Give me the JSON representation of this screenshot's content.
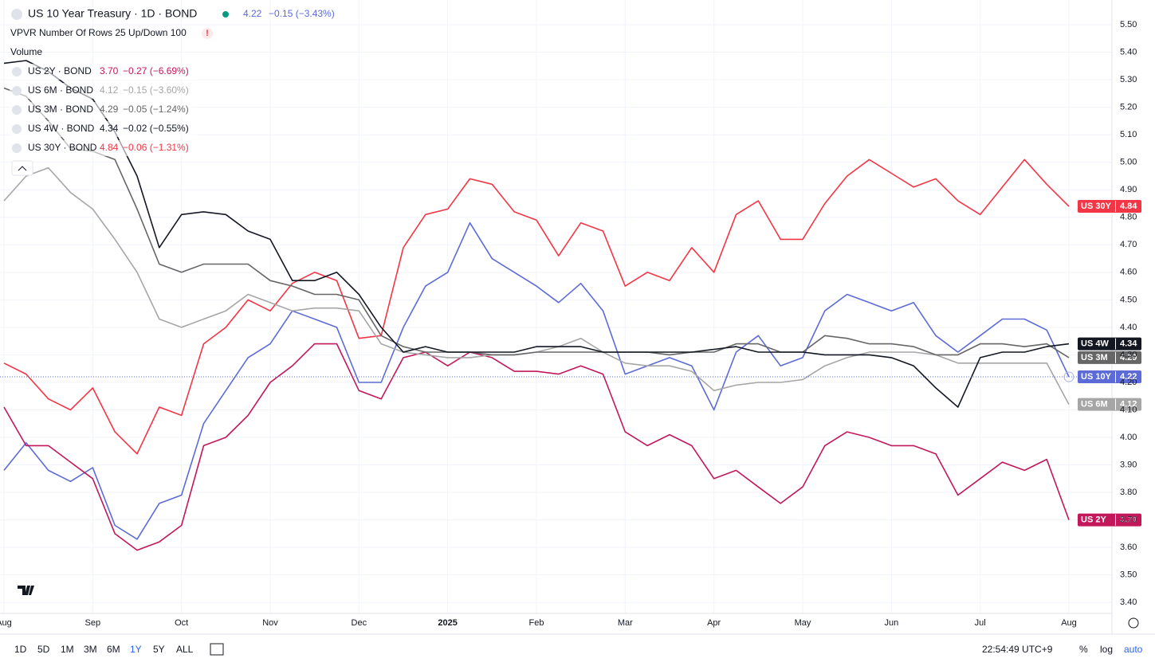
{
  "chart_data": {
    "type": "line",
    "title": "US 10 Year Treasury · 1D · BOND",
    "header_last": "4.22",
    "header_change": "−0.15 (−3.43%)",
    "indicators": [
      "VPVR Number Of Rows 25 Up/Down 100",
      "Volume"
    ],
    "legend": [
      {
        "name": "US 2Y · BOND",
        "last": "3.70",
        "change": "−0.27 (−6.69%)",
        "color": "#c2185b"
      },
      {
        "name": "US 6M · BOND",
        "last": "4.12",
        "change": "−0.15 (−3.60%)",
        "color": "#a6a6a6"
      },
      {
        "name": "US 3M · BOND",
        "last": "4.29",
        "change": "−0.05 (−1.24%)",
        "color": "#666666"
      },
      {
        "name": "US 4W · BOND",
        "last": "4.34",
        "change": "−0.02 (−0.55%)",
        "color": "#131722"
      },
      {
        "name": "US 30Y · BOND",
        "last": "4.84",
        "change": "−0.06 (−1.31%)",
        "color": "#f23645"
      }
    ],
    "categories": [
      "Aug",
      null,
      null,
      null,
      "Sep",
      null,
      null,
      null,
      "Oct",
      null,
      null,
      null,
      "Nov",
      null,
      null,
      null,
      "Dec",
      null,
      null,
      null,
      "2025",
      null,
      null,
      null,
      "Feb",
      null,
      null,
      null,
      "Mar",
      null,
      null,
      null,
      "Apr",
      null,
      null,
      null,
      "May",
      null,
      null,
      null,
      "Jun",
      null,
      null,
      null,
      "Jul",
      null,
      null,
      null,
      "Aug"
    ],
    "series": [
      {
        "name": "US 10Y",
        "tag": "4.22",
        "color": "#5c6bd6",
        "values": [
          3.88,
          3.98,
          3.88,
          3.84,
          3.89,
          3.68,
          3.63,
          3.76,
          3.79,
          4.05,
          4.17,
          4.29,
          4.34,
          4.46,
          4.43,
          4.4,
          4.2,
          4.2,
          4.4,
          4.55,
          4.6,
          4.78,
          4.65,
          4.6,
          4.55,
          4.49,
          4.56,
          4.46,
          4.23,
          4.26,
          4.29,
          4.26,
          4.1,
          4.31,
          4.37,
          4.26,
          4.29,
          4.46,
          4.52,
          4.49,
          4.46,
          4.49,
          4.37,
          4.31,
          4.37,
          4.43,
          4.43,
          4.39,
          4.22
        ]
      },
      {
        "name": "US 30Y",
        "tag": "4.84",
        "color": "#f23645",
        "values": [
          4.27,
          4.23,
          4.14,
          4.1,
          4.18,
          4.02,
          3.94,
          4.11,
          4.08,
          4.34,
          4.4,
          4.5,
          4.46,
          4.56,
          4.6,
          4.57,
          4.36,
          4.37,
          4.69,
          4.81,
          4.83,
          4.94,
          4.92,
          4.82,
          4.79,
          4.66,
          4.78,
          4.75,
          4.55,
          4.6,
          4.57,
          4.69,
          4.6,
          4.81,
          4.86,
          4.72,
          4.72,
          4.85,
          4.95,
          5.01,
          4.96,
          4.91,
          4.94,
          4.86,
          4.81,
          4.91,
          5.01,
          4.92,
          4.84
        ]
      },
      {
        "name": "US 2Y",
        "tag": "3.70",
        "color": "#c2185b",
        "values": [
          4.11,
          3.97,
          3.97,
          3.91,
          3.85,
          3.65,
          3.59,
          3.62,
          3.68,
          3.97,
          4.0,
          4.08,
          4.2,
          4.26,
          4.34,
          4.34,
          4.17,
          4.14,
          4.29,
          4.31,
          4.26,
          4.31,
          4.29,
          4.24,
          4.24,
          4.23,
          4.26,
          4.23,
          4.02,
          3.97,
          4.01,
          3.97,
          3.85,
          3.88,
          3.82,
          3.76,
          3.82,
          3.97,
          4.02,
          4.0,
          3.97,
          3.97,
          3.94,
          3.79,
          3.85,
          3.91,
          3.88,
          3.92,
          3.7
        ]
      },
      {
        "name": "US 6M",
        "tag": "4.12",
        "color": "#a6a6a6",
        "values": [
          4.86,
          4.95,
          4.98,
          4.89,
          4.83,
          4.72,
          4.6,
          4.43,
          4.4,
          4.43,
          4.46,
          4.52,
          4.49,
          4.46,
          4.47,
          4.47,
          4.46,
          4.34,
          4.31,
          4.3,
          4.29,
          4.29,
          4.3,
          4.3,
          4.31,
          4.33,
          4.36,
          4.31,
          4.27,
          4.26,
          4.26,
          4.24,
          4.17,
          4.19,
          4.2,
          4.2,
          4.21,
          4.26,
          4.29,
          4.31,
          4.31,
          4.31,
          4.3,
          4.27,
          4.27,
          4.27,
          4.27,
          4.27,
          4.12
        ]
      },
      {
        "name": "US 3M",
        "tag": "4.29",
        "color": "#666666",
        "values": [
          5.27,
          5.24,
          5.15,
          5.05,
          5.04,
          5.01,
          4.83,
          4.63,
          4.6,
          4.63,
          4.63,
          4.63,
          4.57,
          4.55,
          4.52,
          4.52,
          4.5,
          4.37,
          4.33,
          4.31,
          4.31,
          4.31,
          4.3,
          4.3,
          4.31,
          4.31,
          4.31,
          4.31,
          4.31,
          4.31,
          4.3,
          4.31,
          4.31,
          4.34,
          4.34,
          4.31,
          4.31,
          4.37,
          4.36,
          4.34,
          4.34,
          4.33,
          4.3,
          4.3,
          4.34,
          4.34,
          4.33,
          4.34,
          4.29
        ]
      },
      {
        "name": "US 4W",
        "tag": "4.34",
        "color": "#131722",
        "values": [
          5.36,
          5.37,
          5.33,
          5.27,
          5.23,
          5.11,
          4.95,
          4.69,
          4.81,
          4.82,
          4.81,
          4.75,
          4.72,
          4.57,
          4.57,
          4.6,
          4.52,
          4.4,
          4.31,
          4.33,
          4.31,
          4.31,
          4.31,
          4.31,
          4.33,
          4.33,
          4.33,
          4.31,
          4.31,
          4.31,
          4.31,
          4.31,
          4.32,
          4.33,
          4.31,
          4.31,
          4.31,
          4.3,
          4.3,
          4.3,
          4.29,
          4.26,
          4.18,
          4.11,
          4.29,
          4.31,
          4.31,
          4.33,
          4.34
        ]
      }
    ],
    "ylim": [
      3.36,
      5.59
    ],
    "yticks": [
      {
        "value": 3.4,
        "label": "3.40"
      },
      {
        "value": 3.5,
        "label": "3.50"
      },
      {
        "value": 3.6,
        "label": "3.60"
      },
      {
        "value": 3.7,
        "label": "3.70"
      },
      {
        "value": 3.8,
        "label": "3.80"
      },
      {
        "value": 3.9,
        "label": "3.90"
      },
      {
        "value": 4.0,
        "label": "4.00"
      },
      {
        "value": 4.1,
        "label": "4.10"
      },
      {
        "value": 4.2,
        "label": "4.20"
      },
      {
        "value": 4.3,
        "label": "4.30"
      },
      {
        "value": 4.4,
        "label": "4.40"
      },
      {
        "value": 4.5,
        "label": "4.50"
      },
      {
        "value": 4.6,
        "label": "4.60"
      },
      {
        "value": 4.7,
        "label": "4.70"
      },
      {
        "value": 4.8,
        "label": "4.80"
      },
      {
        "value": 4.9,
        "label": "4.90"
      },
      {
        "value": 5.0,
        "label": "5.00"
      },
      {
        "value": 5.1,
        "label": "5.10"
      },
      {
        "value": 5.2,
        "label": "5.20"
      },
      {
        "value": 5.3,
        "label": "5.30"
      },
      {
        "value": 5.4,
        "label": "5.40"
      },
      {
        "value": 5.5,
        "label": "5.50"
      }
    ],
    "grid": true,
    "toolbar": {
      "ranges": [
        "1D",
        "5D",
        "1M",
        "3M",
        "6M",
        "1Y",
        "5Y",
        "ALL"
      ],
      "time": "22:54:49 UTC+9",
      "options": [
        "%",
        "log",
        "auto"
      ]
    }
  }
}
